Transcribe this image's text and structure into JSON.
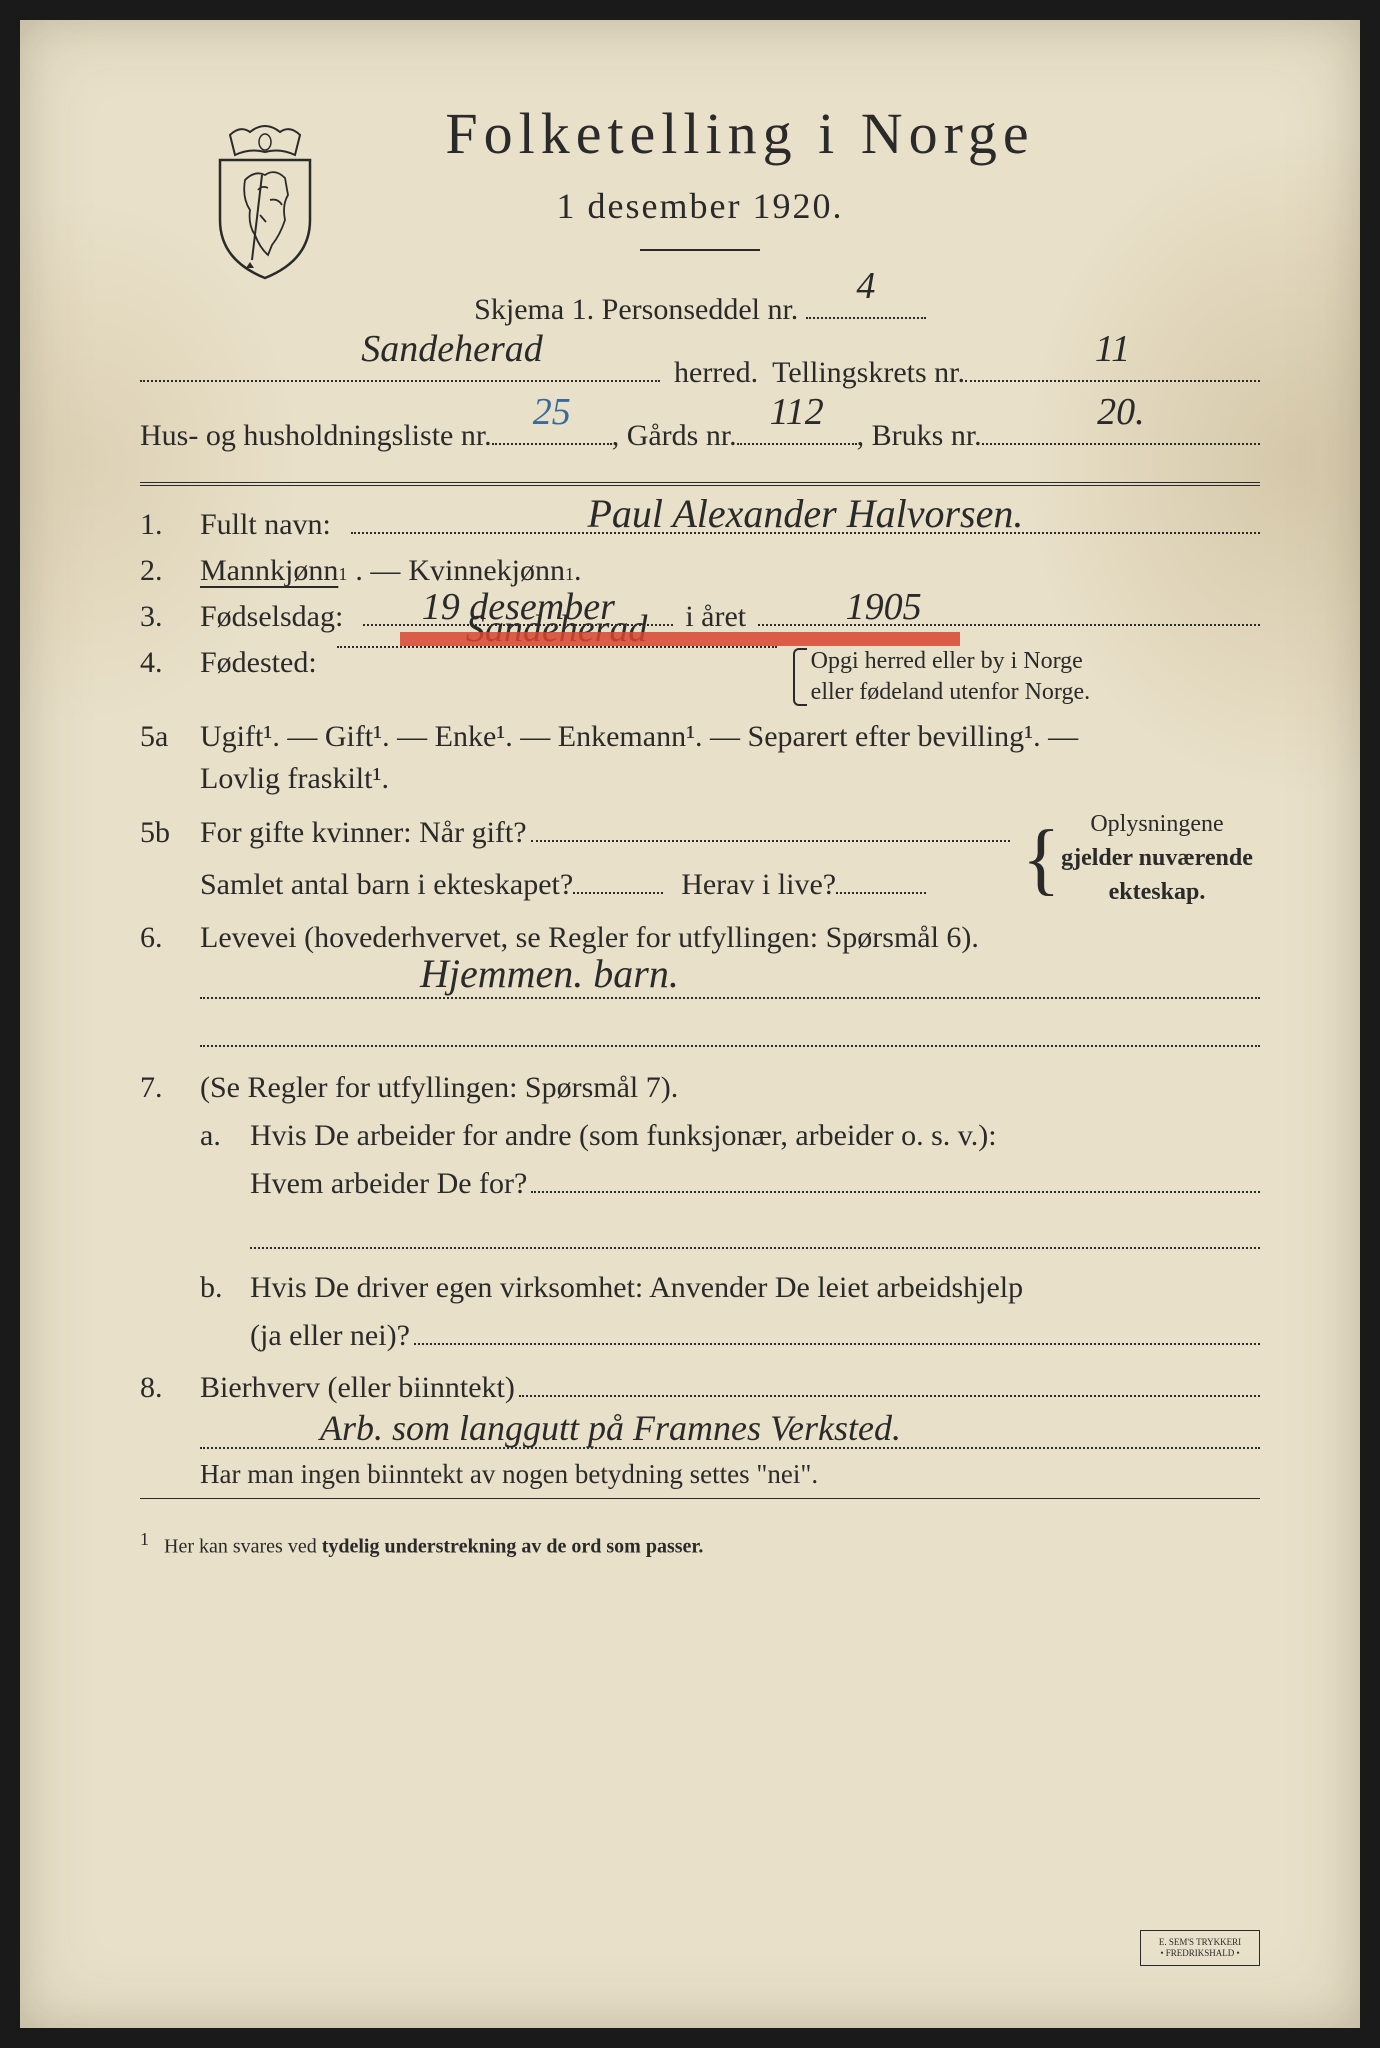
{
  "header": {
    "title": "Folketelling  i  Norge",
    "subtitle": "1 desember 1920."
  },
  "schema": {
    "label": "Skjema 1.   Personseddel nr.",
    "value": "4"
  },
  "herred": {
    "value": "Sandeherad",
    "label": "herred.",
    "krets_label": "Tellingskrets nr.",
    "krets_value": "11"
  },
  "husholdning": {
    "prefix": "Hus- og husholdningsliste nr.",
    "hush_value": "25",
    "gards_label": ", Gårds nr.",
    "gards_value": "112",
    "bruks_label": ", Bruks nr.",
    "bruks_value": "20."
  },
  "q1": {
    "num": "1.",
    "label": "Fullt navn:",
    "value": "Paul Alexander Halvorsen."
  },
  "q2": {
    "num": "2.",
    "mann": "Mannkjønn",
    "kvin": "Kvinnekjønn",
    "sup": "1"
  },
  "q3": {
    "num": "3.",
    "label": "Fødselsdag:",
    "day": "19 desember",
    "mid": "i året",
    "year": "1905"
  },
  "q4": {
    "num": "4.",
    "label": "Fødested:",
    "value": "Sandeherad",
    "note1": "Opgi herred eller by i Norge",
    "note2": "eller fødeland utenfor Norge."
  },
  "q5a": {
    "num": "5a",
    "options": "Ugift¹. — Gift¹. — Enke¹. — Enkemann¹. — Separert efter bevilling¹. —",
    "line2": "Lovlig fraskilt¹."
  },
  "q5b": {
    "num": "5b",
    "l1": "For gifte kvinner:  Når gift?",
    "l2a": "Samlet antal barn i ekteskapet?",
    "l2b": "Herav i live?",
    "note1": "Oplysningene",
    "note2": "gjelder nuværende",
    "note3": "ekteskap."
  },
  "q6": {
    "num": "6.",
    "label": "Levevei (hovederhvervet, se Regler for utfyllingen:  Spørsmål 6).",
    "value": "Hjemmen. barn."
  },
  "q7": {
    "num": "7.",
    "label": "(Se Regler for utfyllingen:  Spørsmål 7).",
    "a_label": "a.",
    "a_l1": "Hvis De arbeider for andre (som funksjonær, arbeider o. s. v.):",
    "a_l2": "Hvem arbeider De for?",
    "b_label": "b.",
    "b_l1": "Hvis De driver egen virksomhet:  Anvender De leiet arbeidshjelp",
    "b_l2": "(ja eller nei)?"
  },
  "q8": {
    "num": "8.",
    "label": "Bierhverv (eller biinntekt)",
    "value": "Arb. som langgutt på Framnes Verksted.",
    "note": "Har man ingen biinntekt av nogen betydning settes \"nei\"."
  },
  "footnote": {
    "sup": "1",
    "text": "Her kan svares ved tydelig understrekning av de ord som passer."
  },
  "stamp": {
    "l1": "E. SEM'S TRYKKERI",
    "l2": "• FREDRIKSHALD •"
  },
  "colors": {
    "paper": "#e8e0c8",
    "ink": "#2a2a2a",
    "red_strike": "#d84530",
    "blue_ink": "#3a6a9a"
  }
}
